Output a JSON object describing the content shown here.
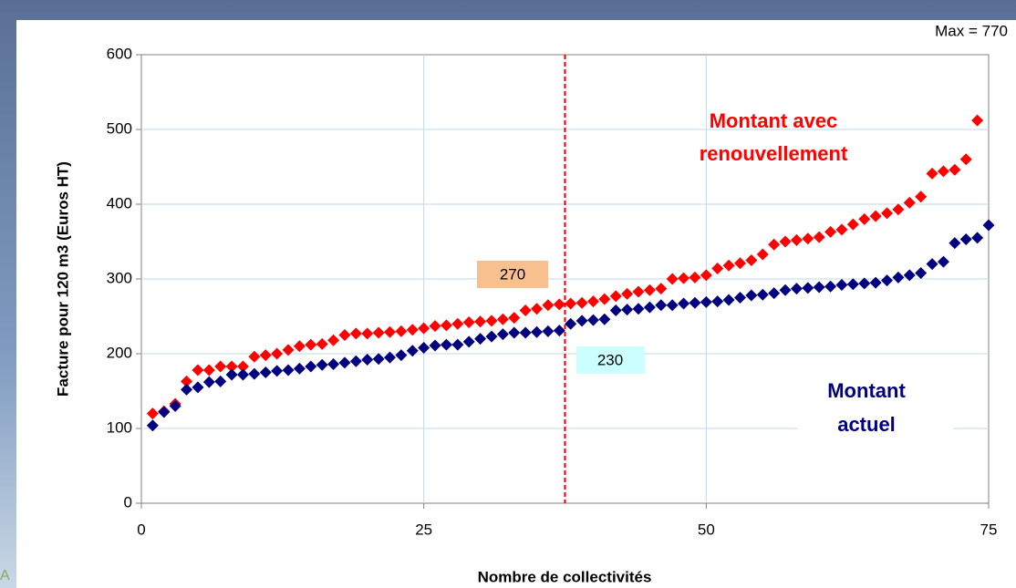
{
  "chart_data": {
    "type": "scatter",
    "xlabel": "Nombre de collectivités",
    "ylabel": "Facture pour 120 m3 (Euros HT)",
    "xlim": [
      0,
      75
    ],
    "xticks": [
      0,
      25,
      50,
      75
    ],
    "ylim": [
      0,
      600
    ],
    "yticks": [
      0,
      100,
      200,
      300,
      400,
      500,
      600
    ],
    "grid": true,
    "vline": 37.5,
    "series": [
      {
        "name": "Montant avec renouvellement",
        "color": "#ff0000",
        "x": [
          1,
          2,
          3,
          4,
          5,
          6,
          7,
          8,
          9,
          10,
          11,
          12,
          13,
          14,
          15,
          16,
          17,
          18,
          19,
          20,
          21,
          22,
          23,
          24,
          25,
          26,
          27,
          28,
          29,
          30,
          31,
          32,
          33,
          34,
          35,
          36,
          37,
          38,
          39,
          40,
          41,
          42,
          43,
          44,
          45,
          46,
          47,
          48,
          49,
          50,
          51,
          52,
          53,
          54,
          55,
          56,
          57,
          58,
          59,
          60,
          61,
          62,
          63,
          64,
          65,
          66,
          67,
          68,
          69,
          70,
          71,
          72,
          73,
          74
        ],
        "values": [
          120,
          123,
          133,
          163,
          178,
          178,
          183,
          183,
          183,
          196,
          198,
          200,
          205,
          210,
          212,
          213,
          218,
          225,
          227,
          227,
          228,
          229,
          230,
          232,
          234,
          237,
          238,
          240,
          242,
          243,
          244,
          246,
          248,
          258,
          260,
          265,
          266,
          267,
          268,
          270,
          273,
          277,
          280,
          283,
          285,
          287,
          300,
          301,
          302,
          305,
          314,
          318,
          321,
          325,
          333,
          346,
          350,
          352,
          354,
          356,
          363,
          366,
          373,
          380,
          384,
          388,
          393,
          402,
          410,
          441,
          444,
          446,
          460,
          512
        ]
      },
      {
        "name": "Montant actuel",
        "color": "#000080",
        "x": [
          1,
          2,
          3,
          4,
          5,
          6,
          7,
          8,
          9,
          10,
          11,
          12,
          13,
          14,
          15,
          16,
          17,
          18,
          19,
          20,
          21,
          22,
          23,
          24,
          25,
          26,
          27,
          28,
          29,
          30,
          31,
          32,
          33,
          34,
          35,
          36,
          37,
          38,
          39,
          40,
          41,
          42,
          43,
          44,
          45,
          46,
          47,
          48,
          49,
          50,
          51,
          52,
          53,
          54,
          55,
          56,
          57,
          58,
          59,
          60,
          61,
          62,
          63,
          64,
          65,
          66,
          67,
          68,
          69,
          70,
          71,
          72,
          73,
          74,
          75
        ],
        "values": [
          104,
          122,
          130,
          152,
          155,
          162,
          163,
          172,
          172,
          173,
          175,
          177,
          178,
          180,
          183,
          185,
          186,
          188,
          190,
          192,
          193,
          195,
          198,
          204,
          208,
          211,
          212,
          212,
          216,
          220,
          223,
          226,
          228,
          228,
          229,
          230,
          231,
          240,
          244,
          245,
          246,
          258,
          259,
          260,
          262,
          265,
          265,
          267,
          268,
          269,
          270,
          272,
          275,
          278,
          279,
          281,
          285,
          287,
          288,
          289,
          290,
          292,
          293,
          294,
          295,
          298,
          302,
          305,
          308,
          320,
          323,
          348,
          353,
          355,
          372
        ]
      }
    ],
    "annotations": {
      "max": "Max = 770",
      "red_label": [
        "Montant avec",
        "renouvellement"
      ],
      "blue_label": [
        "Montant",
        "actuel"
      ],
      "box_red": "270",
      "box_blue": "230"
    },
    "background_text": "A"
  }
}
